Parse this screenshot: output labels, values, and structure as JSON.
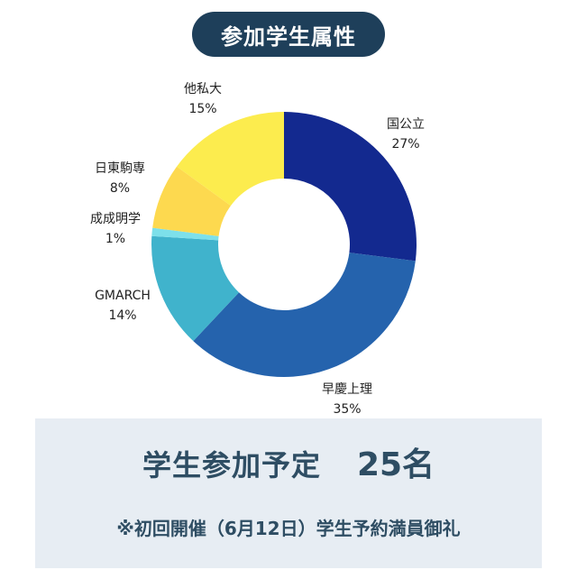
{
  "header": {
    "title": "参加学生属性"
  },
  "chart_data": {
    "type": "pie",
    "title": "参加学生属性",
    "style": "donut",
    "start": "top, clockwise",
    "slices": [
      {
        "label": "国公立",
        "value": 27,
        "display": "27%",
        "color": "#13298f"
      },
      {
        "label": "早慶上理",
        "value": 35,
        "display": "35%",
        "color": "#2563ad"
      },
      {
        "label": "GMARCH",
        "value": 14,
        "display": "14%",
        "color": "#40b3cc"
      },
      {
        "label": "成成明学",
        "value": 1,
        "display": "1%",
        "color": "#7de0ea"
      },
      {
        "label": "日東駒専",
        "value": 8,
        "display": "8%",
        "color": "#fdd94f"
      },
      {
        "label": "他私大",
        "value": 15,
        "display": "15%",
        "color": "#fcec4e"
      }
    ]
  },
  "summary": {
    "planned_label": "学生参加予定",
    "planned_count": "25名",
    "note": "※初回開催（6月12日）学生予約満員御礼"
  }
}
